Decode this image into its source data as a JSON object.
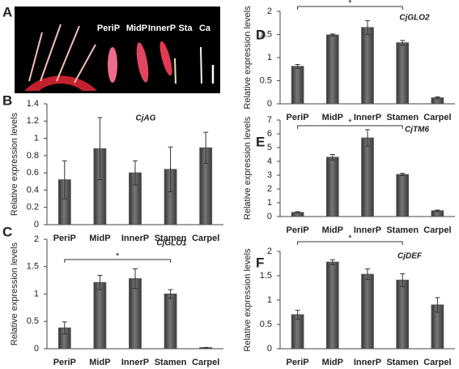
{
  "photo_panel": {
    "panel": "A",
    "labels": [
      "PeriP",
      "MidP",
      "InnerP",
      "Sta",
      "Ca"
    ]
  },
  "chart_data": [
    {
      "type": "bar",
      "panel": "B",
      "title": "CjAG",
      "y_label": "Relative expression levels",
      "color": "#555555",
      "categories": [
        "PeriP",
        "MidP",
        "InnerP",
        "Stamen",
        "Carpel"
      ],
      "values": [
        0.52,
        0.88,
        0.6,
        0.64,
        0.89
      ],
      "errors": [
        0.22,
        0.36,
        0.14,
        0.26,
        0.18
      ],
      "ylim": [
        0,
        1.4
      ],
      "yticks": [
        0,
        0.2,
        0.4,
        0.6,
        0.8,
        1,
        1.2,
        1.4
      ]
    },
    {
      "type": "bar",
      "panel": "C",
      "title": "CjGLO1",
      "y_label": "Relative expression levels",
      "color": "#555555",
      "categories": [
        "PeriP",
        "MidP",
        "InnerP",
        "Stamen",
        "Carpel"
      ],
      "values": [
        0.38,
        1.21,
        1.28,
        1.0,
        0.02
      ],
      "errors": [
        0.11,
        0.13,
        0.18,
        0.08,
        0.005
      ],
      "ylim": [
        0,
        2
      ],
      "yticks": [
        0,
        0.5,
        1,
        1.5,
        2
      ],
      "annotation": "*"
    },
    {
      "type": "bar",
      "panel": "D",
      "title": "CjGLO2",
      "y_label": "Relative expression levels",
      "color": "#555555",
      "categories": [
        "PeriP",
        "MidP",
        "InnerP",
        "Stamen",
        "Carpel"
      ],
      "values": [
        0.81,
        1.49,
        1.65,
        1.32,
        0.13
      ],
      "errors": [
        0.04,
        0.02,
        0.15,
        0.05,
        0.02
      ],
      "ylim": [
        0,
        2
      ],
      "yticks": [
        0,
        0.5,
        1,
        1.5,
        2
      ],
      "annotation": "*"
    },
    {
      "type": "bar",
      "panel": "E",
      "title": "CjTM6",
      "y_label": "Relative expression levels",
      "color": "#555555",
      "categories": [
        "PeriP",
        "MidP",
        "InnerP",
        "Stamen",
        "Carpel"
      ],
      "values": [
        0.3,
        4.3,
        5.7,
        3.05,
        0.42
      ],
      "errors": [
        0.05,
        0.2,
        0.6,
        0.08,
        0.05
      ],
      "ylim": [
        0,
        7
      ],
      "yticks": [
        0,
        1,
        2,
        3,
        4,
        5,
        6,
        7
      ],
      "annotation": "*"
    },
    {
      "type": "bar",
      "panel": "F",
      "title": "CjDEF",
      "y_label": "Relative expression levels",
      "color": "#555555",
      "categories": [
        "PeriP",
        "MidP",
        "InnerP",
        "Stamen",
        "Carpel"
      ],
      "values": [
        0.7,
        1.78,
        1.53,
        1.41,
        0.9
      ],
      "errors": [
        0.09,
        0.05,
        0.11,
        0.13,
        0.15
      ],
      "ylim": [
        0,
        2
      ],
      "yticks": [
        0,
        0.5,
        1,
        1.5,
        2
      ],
      "annotation": "*"
    }
  ]
}
